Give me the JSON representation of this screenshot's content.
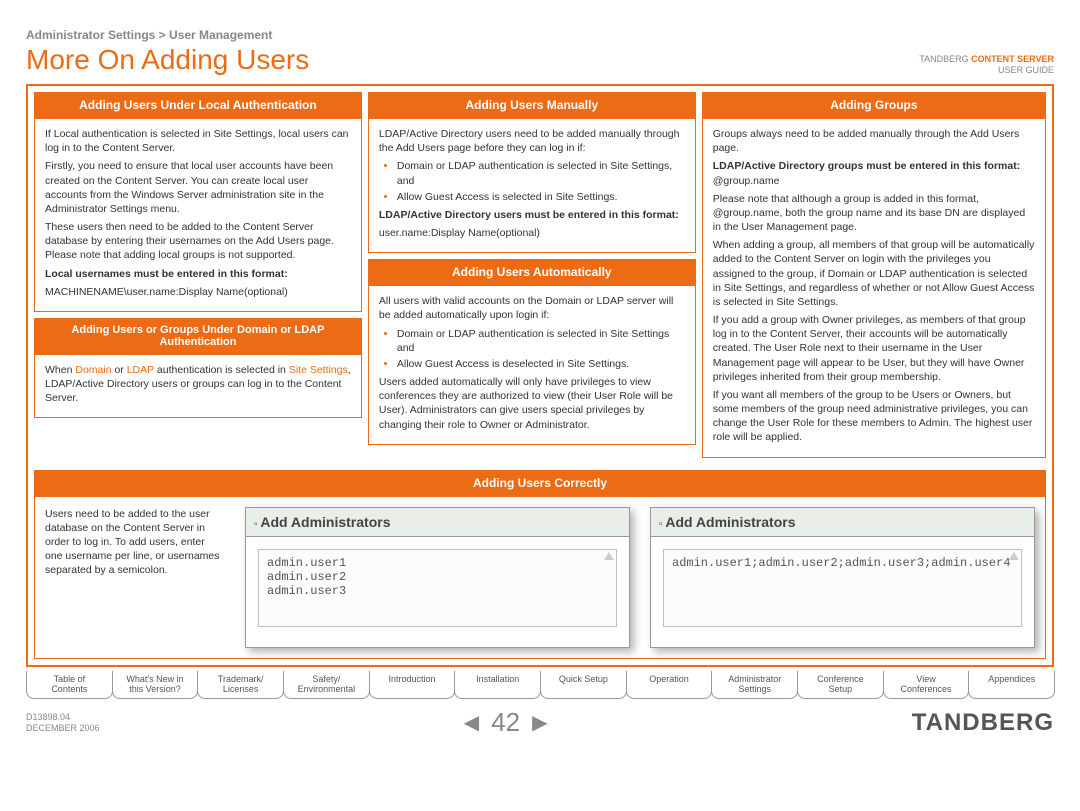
{
  "breadcrumb": "Administrator Settings > User Management",
  "title": "More On Adding Users",
  "brand_line1": "TANDBERG",
  "brand_line1_accent": "CONTENT SERVER",
  "brand_line2": "USER GUIDE",
  "col1": {
    "hdr1": "Adding Users Under Local Authentication",
    "body1_p1": "If Local authentication is selected in Site Settings, local users can log in to the Content Server.",
    "body1_p2": "Firstly, you need to ensure that local user accounts have been created on the Content Server. You can create local user accounts from the Windows Server administration site in the Administrator Settings menu.",
    "body1_p3": "These users then need to be added to the Content Server database by entering their usernames on the Add Users page. Please note that adding local groups is not supported.",
    "body1_bold": "Local usernames must be entered in this format:",
    "body1_p4": "MACHINENAME\\user.name:Display Name(optional)",
    "hdr2": "Adding Users or Groups Under Domain or LDAP Authentication",
    "body2_pre": "When ",
    "body2_link1": "Domain",
    "body2_mid1": " or ",
    "body2_link2": "LDAP",
    "body2_mid2": " authentication is selected in ",
    "body2_link3": "Site Settings",
    "body2_post": ", LDAP/Active Directory users or groups can log in to the Content Server."
  },
  "col2": {
    "hdr1": "Adding Users Manually",
    "body1_p1": "LDAP/Active Directory users need to be added manually through the Add Users page before they can log in if:",
    "body1_li1": "Domain or LDAP authentication is selected in Site Settings, and",
    "body1_li2": "Allow Guest Access is selected in Site Settings.",
    "body1_bold": "LDAP/Active Directory users must be entered in this format:",
    "body1_p2": "user.name:Display Name(optional)",
    "hdr2": "Adding Users Automatically",
    "body2_p1": "All users with valid accounts on the Domain or LDAP server will be added automatically upon login if:",
    "body2_li1": "Domain or LDAP authentication is selected in Site Settings and",
    "body2_li2": "Allow Guest Access is deselected in Site Settings.",
    "body2_p2": "Users added automatically will only have privileges to view conferences they are authorized to view (their User Role will be User). Administrators can give users special privileges by changing their role to Owner or Administrator."
  },
  "col3": {
    "hdr": "Adding Groups",
    "p1": "Groups always need to be added manually through the Add Users page.",
    "bold": "LDAP/Active Directory groups must be entered in this format:",
    "p2": "@group.name",
    "p3": "Please note that although a group is added in this format, @group.name, both the group name and its base DN are displayed in the User Management page.",
    "p4": "When adding a group, all members of that group will be automatically added to the Content Server on login with the privileges you assigned to the group, if Domain or LDAP authentication is selected in Site Settings, and regardless of whether or not Allow Guest Access is selected in Site Settings.",
    "p5": "If you add a group with Owner privileges, as members of that group log in to the Content Server, their accounts will be automatically created. The User Role next to their username in the User Management page will appear to be User, but they will have Owner privileges inherited from their group membership.",
    "p6": "If you want all members of the group to be Users or Owners, but some members of the group need administrative privileges, you can change the User Role for these members to Admin. The highest user role will be applied."
  },
  "bottom": {
    "hdr": "Adding Users Correctly",
    "text": "Users need to be added to the user database on the Content Server in order to log in. To add users, enter one username per line, or usernames separated by a semicolon.",
    "shot_title": "Add Administrators",
    "shot1_text": "admin.user1\nadmin.user2\nadmin.user3",
    "shot2_text": "admin.user1;admin.user2;admin.user3;admin.user4"
  },
  "tabs": [
    "Table of\nContents",
    "What's New in\nthis Version?",
    "Trademark/\nLicenses",
    "Safety/\nEnvironmental",
    "Introduction",
    "Installation",
    "Quick Setup",
    "Operation",
    "Administrator\nSettings",
    "Conference\nSetup",
    "View\nConferences",
    "Appendices"
  ],
  "footer": {
    "doc": "D13898.04",
    "date": "DECEMBER 2006",
    "page": "42",
    "logo": "TANDBERG"
  },
  "colors": {
    "accent": "#ec6b14",
    "text": "#333",
    "muted": "#888"
  }
}
